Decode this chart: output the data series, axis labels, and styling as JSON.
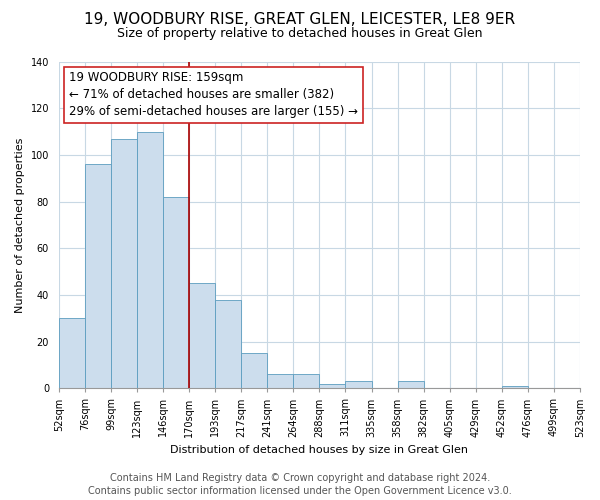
{
  "title": "19, WOODBURY RISE, GREAT GLEN, LEICESTER, LE8 9ER",
  "subtitle": "Size of property relative to detached houses in Great Glen",
  "xlabel": "Distribution of detached houses by size in Great Glen",
  "ylabel": "Number of detached properties",
  "bin_labels": [
    "52sqm",
    "76sqm",
    "99sqm",
    "123sqm",
    "146sqm",
    "170sqm",
    "193sqm",
    "217sqm",
    "241sqm",
    "264sqm",
    "288sqm",
    "311sqm",
    "335sqm",
    "358sqm",
    "382sqm",
    "405sqm",
    "429sqm",
    "452sqm",
    "476sqm",
    "499sqm",
    "523sqm"
  ],
  "bar_values": [
    30,
    96,
    107,
    110,
    82,
    45,
    38,
    15,
    6,
    6,
    2,
    3,
    0,
    3,
    0,
    0,
    0,
    1,
    0,
    0
  ],
  "bar_color": "#ccdded",
  "bar_edge_color": "#5b9cbf",
  "vline_pos": 5,
  "vline_color": "#aa0000",
  "ylim": [
    0,
    140
  ],
  "yticks": [
    0,
    20,
    40,
    60,
    80,
    100,
    120,
    140
  ],
  "annotation_text": "19 WOODBURY RISE: 159sqm\n← 71% of detached houses are smaller (382)\n29% of semi-detached houses are larger (155) →",
  "footer_line1": "Contains HM Land Registry data © Crown copyright and database right 2024.",
  "footer_line2": "Contains public sector information licensed under the Open Government Licence v3.0.",
  "background_color": "#ffffff",
  "grid_color": "#c8d8e4",
  "title_fontsize": 11,
  "subtitle_fontsize": 9,
  "annotation_fontsize": 8.5,
  "footer_fontsize": 7,
  "ylabel_fontsize": 8,
  "xlabel_fontsize": 8,
  "tick_fontsize": 7
}
